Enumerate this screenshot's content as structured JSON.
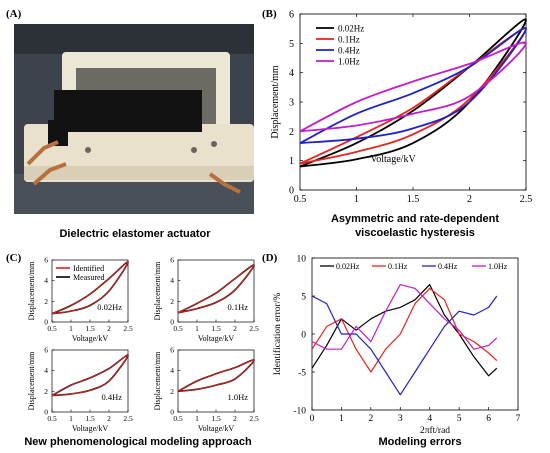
{
  "panels": {
    "a": {
      "label": "(A)",
      "caption": "Dielectric elastomer actuator"
    },
    "b": {
      "label": "(B)",
      "caption_line1": "Asymmetric and rate-dependent",
      "caption_line2": "viscoelastic hysteresis"
    },
    "c": {
      "label": "(C)",
      "caption": "New phenomenological modeling approach"
    },
    "d": {
      "label": "(D)",
      "caption": "Modeling errors"
    }
  },
  "colors": {
    "black": "#000000",
    "red": "#e8231b",
    "blue": "#1d22c9",
    "magenta": "#c21ccb",
    "photo_bg": "#3a4048",
    "frame": "#efe9da",
    "electrode": "#151515",
    "copper": "#b8703e"
  },
  "chart_data": [
    {
      "id": "B",
      "type": "line",
      "xlabel": "Voltage/kV",
      "ylabel": "Displacement/mm",
      "xlim": [
        0.5,
        2.5
      ],
      "ylim": [
        0,
        6
      ],
      "xticks": [
        "0.5",
        "1",
        "1.5",
        "2",
        "2.5"
      ],
      "yticks": [
        "0",
        "1",
        "2",
        "3",
        "4",
        "5",
        "6"
      ],
      "legend_position": "top-left",
      "series": [
        {
          "name": "0.02Hz",
          "color": "#000000",
          "loading": [
            [
              0.5,
              0.8
            ],
            [
              1.0,
              1.05
            ],
            [
              1.5,
              1.6
            ],
            [
              2.0,
              3.0
            ],
            [
              2.5,
              5.8
            ]
          ],
          "unloading": [
            [
              2.5,
              5.8
            ],
            [
              2.0,
              4.2
            ],
            [
              1.5,
              2.7
            ],
            [
              1.0,
              1.6
            ],
            [
              0.5,
              0.8
            ]
          ]
        },
        {
          "name": "0.1Hz",
          "color": "#e8231b",
          "loading": [
            [
              0.5,
              0.9
            ],
            [
              1.0,
              1.3
            ],
            [
              1.5,
              1.9
            ],
            [
              2.0,
              3.1
            ],
            [
              2.5,
              5.5
            ]
          ],
          "unloading": [
            [
              2.5,
              5.5
            ],
            [
              2.0,
              4.2
            ],
            [
              1.5,
              2.8
            ],
            [
              1.0,
              1.8
            ],
            [
              0.5,
              0.9
            ]
          ]
        },
        {
          "name": "0.4Hz",
          "color": "#1d22c9",
          "loading": [
            [
              0.5,
              1.6
            ],
            [
              1.0,
              1.75
            ],
            [
              1.5,
              2.1
            ],
            [
              2.0,
              3.0
            ],
            [
              2.5,
              5.5
            ]
          ],
          "unloading": [
            [
              2.5,
              5.5
            ],
            [
              2.0,
              4.2
            ],
            [
              1.5,
              3.3
            ],
            [
              1.0,
              2.6
            ],
            [
              0.5,
              1.6
            ]
          ]
        },
        {
          "name": "1.0Hz",
          "color": "#c21ccb",
          "loading": [
            [
              0.5,
              2.0
            ],
            [
              1.0,
              2.2
            ],
            [
              1.5,
              2.6
            ],
            [
              2.0,
              3.2
            ],
            [
              2.5,
              5.0
            ]
          ],
          "unloading": [
            [
              2.5,
              5.0
            ],
            [
              2.0,
              4.3
            ],
            [
              1.5,
              3.7
            ],
            [
              1.0,
              3.0
            ],
            [
              0.5,
              2.0
            ]
          ]
        }
      ]
    },
    {
      "id": "C",
      "type": "line",
      "xlabel": "Voltage/kV",
      "ylabel": "Displacement/mm",
      "xlim": [
        0.5,
        2.5
      ],
      "ylim": [
        0,
        6
      ],
      "xticks": [
        "0.5",
        "1",
        "1.5",
        "2",
        "2.5"
      ],
      "yticks": [
        "0",
        "2",
        "4",
        "6"
      ],
      "legend": [
        "Identified",
        "Measured"
      ],
      "legend_colors": [
        "#e8231b",
        "#000000"
      ],
      "subplots": [
        "0.02Hz",
        "0.1Hz",
        "0.4Hz",
        "1.0Hz"
      ]
    },
    {
      "id": "D",
      "type": "line",
      "xlabel": "2πft/rad",
      "ylabel": "Identification error/%",
      "xlim": [
        0,
        7
      ],
      "ylim": [
        -10,
        10
      ],
      "xticks": [
        "0",
        "1",
        "2",
        "3",
        "4",
        "5",
        "6",
        "7"
      ],
      "yticks": [
        "-10",
        "-5",
        "0",
        "5",
        "10"
      ],
      "legend_position": "top",
      "series": [
        {
          "name": "0.02Hz",
          "color": "#000000",
          "x": [
            0,
            0.5,
            1.0,
            1.5,
            2.0,
            2.5,
            3.0,
            3.5,
            4.0,
            4.5,
            5.0,
            5.5,
            6.0,
            6.28
          ],
          "y": [
            -4.5,
            -1.5,
            2.0,
            0.5,
            2.0,
            3.0,
            3.5,
            4.5,
            6.5,
            2.5,
            0.0,
            -3.0,
            -5.5,
            -4.5
          ]
        },
        {
          "name": "0.1Hz",
          "color": "#e8231b",
          "x": [
            0,
            0.5,
            1.0,
            1.5,
            2.0,
            2.5,
            3.0,
            3.5,
            4.0,
            4.5,
            5.0,
            5.5,
            6.0,
            6.28
          ],
          "y": [
            -2.0,
            1.0,
            2.0,
            -2.0,
            -5.0,
            -2.0,
            0.0,
            4.0,
            6.0,
            4.5,
            0.0,
            -1.0,
            -2.5,
            -3.5
          ]
        },
        {
          "name": "0.4Hz",
          "color": "#1d22c9",
          "x": [
            0,
            0.5,
            1.0,
            1.5,
            2.0,
            2.5,
            3.0,
            3.5,
            4.0,
            4.5,
            5.0,
            5.5,
            6.0,
            6.28
          ],
          "y": [
            5.0,
            4.0,
            0.0,
            0.0,
            -2.0,
            -5.0,
            -8.0,
            -5.0,
            -2.0,
            1.0,
            3.0,
            2.5,
            3.5,
            5.0
          ]
        },
        {
          "name": "1.0Hz",
          "color": "#c21ccb",
          "x": [
            0,
            0.5,
            1.0,
            1.5,
            2.0,
            2.5,
            3.0,
            3.5,
            4.0,
            4.5,
            5.0,
            5.5,
            6.0,
            6.28
          ],
          "y": [
            -1.0,
            -2.0,
            -2.0,
            1.0,
            -1.0,
            3.0,
            6.5,
            6.0,
            4.0,
            2.0,
            0.5,
            -2.0,
            -1.5,
            -0.5
          ]
        }
      ]
    }
  ]
}
